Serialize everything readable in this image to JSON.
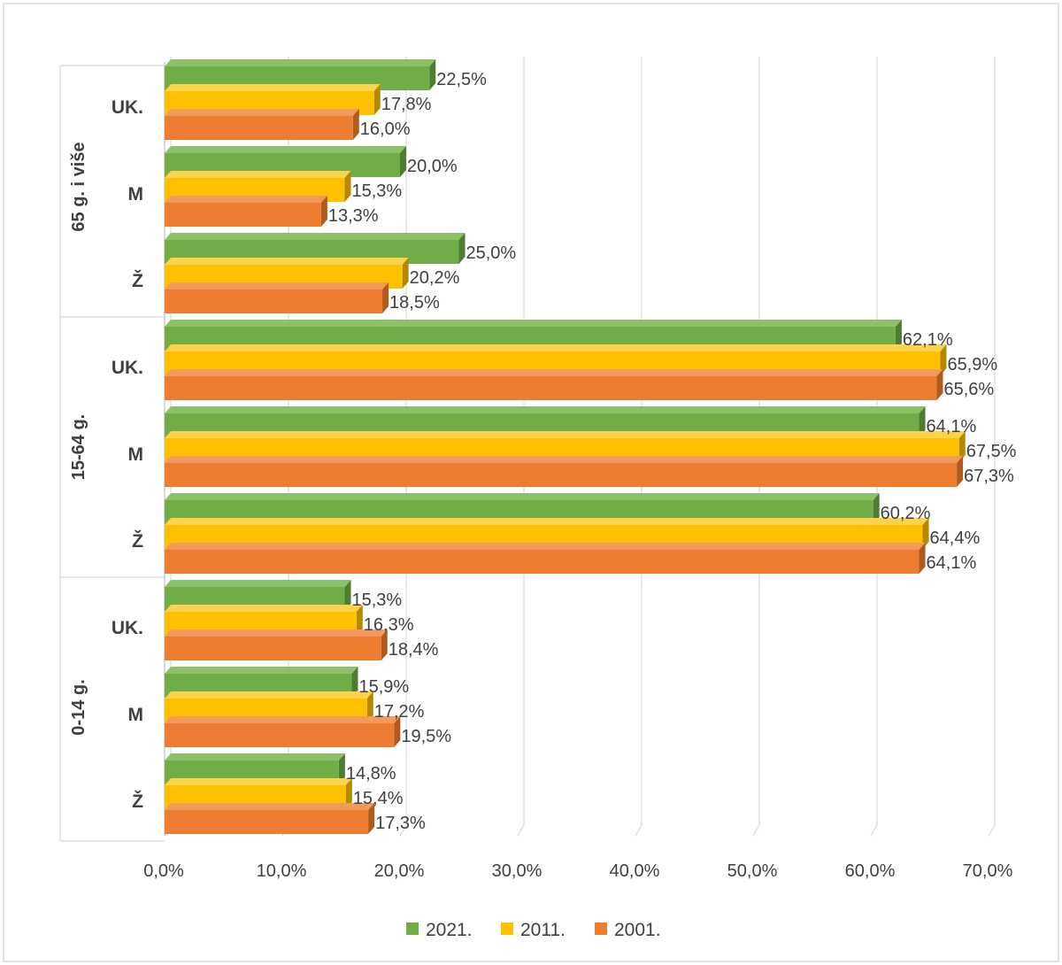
{
  "chart_data": {
    "type": "bar",
    "orientation": "horizontal",
    "title": "",
    "xlim": [
      0,
      70
    ],
    "x_ticks": [
      "0,0%",
      "10,0%",
      "20,0%",
      "30,0%",
      "40,0%",
      "50,0%",
      "60,0%",
      "70,0%"
    ],
    "grid": true,
    "legend_position": "bottom",
    "groups": [
      {
        "name": "65 g. i više",
        "categories": [
          {
            "name": "UK.",
            "values": {
              "2021.": 22.5,
              "2011.": 17.8,
              "2001.": 16.0
            },
            "labels": {
              "2021.": "22,5%",
              "2011.": "17,8%",
              "2001.": "16,0%"
            }
          },
          {
            "name": "M",
            "values": {
              "2021.": 20.0,
              "2011.": 15.3,
              "2001.": 13.3
            },
            "labels": {
              "2021.": "20,0%",
              "2011.": "15,3%",
              "2001.": "13,3%"
            }
          },
          {
            "name": "Ž",
            "values": {
              "2021.": 25.0,
              "2011.": 20.2,
              "2001.": 18.5
            },
            "labels": {
              "2021.": "25,0%",
              "2011.": "20,2%",
              "2001.": "18,5%"
            }
          }
        ]
      },
      {
        "name": "15-64 g.",
        "categories": [
          {
            "name": "UK.",
            "values": {
              "2021.": 62.1,
              "2011.": 65.9,
              "2001.": 65.6
            },
            "labels": {
              "2021.": "62,1%",
              "2011.": "65,9%",
              "2001.": "65,6%"
            }
          },
          {
            "name": "M",
            "values": {
              "2021.": 64.1,
              "2011.": 67.5,
              "2001.": 67.3
            },
            "labels": {
              "2021.": "64,1%",
              "2011.": "67,5%",
              "2001.": "67,3%"
            }
          },
          {
            "name": "Ž",
            "values": {
              "2021.": 60.2,
              "2011.": 64.4,
              "2001.": 64.1
            },
            "labels": {
              "2021.": "60,2%",
              "2011.": "64,4%",
              "2001.": "64,1%"
            }
          }
        ]
      },
      {
        "name": "0-14 g.",
        "categories": [
          {
            "name": "UK.",
            "values": {
              "2021.": 15.3,
              "2011.": 16.3,
              "2001.": 18.4
            },
            "labels": {
              "2021.": "15,3%",
              "2011.": "16,3%",
              "2001.": "18,4%"
            }
          },
          {
            "name": "M",
            "values": {
              "2021.": 15.9,
              "2011.": 17.2,
              "2001.": 19.5
            },
            "labels": {
              "2021.": "15,9%",
              "2011.": "17,2%",
              "2001.": "19,5%"
            }
          },
          {
            "name": "Ž",
            "values": {
              "2021.": 14.8,
              "2011.": 15.4,
              "2001.": 17.3
            },
            "labels": {
              "2021.": "14,8%",
              "2011.": "15,4%",
              "2001.": "17,3%"
            }
          }
        ]
      }
    ],
    "series": [
      {
        "name": "2021.",
        "color": "#70ad47",
        "color_dark": "#4e7d31",
        "color_top": "#8cc267"
      },
      {
        "name": "2011.",
        "color": "#ffc000",
        "color_dark": "#b58800",
        "color_top": "#ffd24d"
      },
      {
        "name": "2001.",
        "color": "#ed7d31",
        "color_dark": "#b05a1e",
        "color_top": "#f29a5e"
      }
    ]
  }
}
